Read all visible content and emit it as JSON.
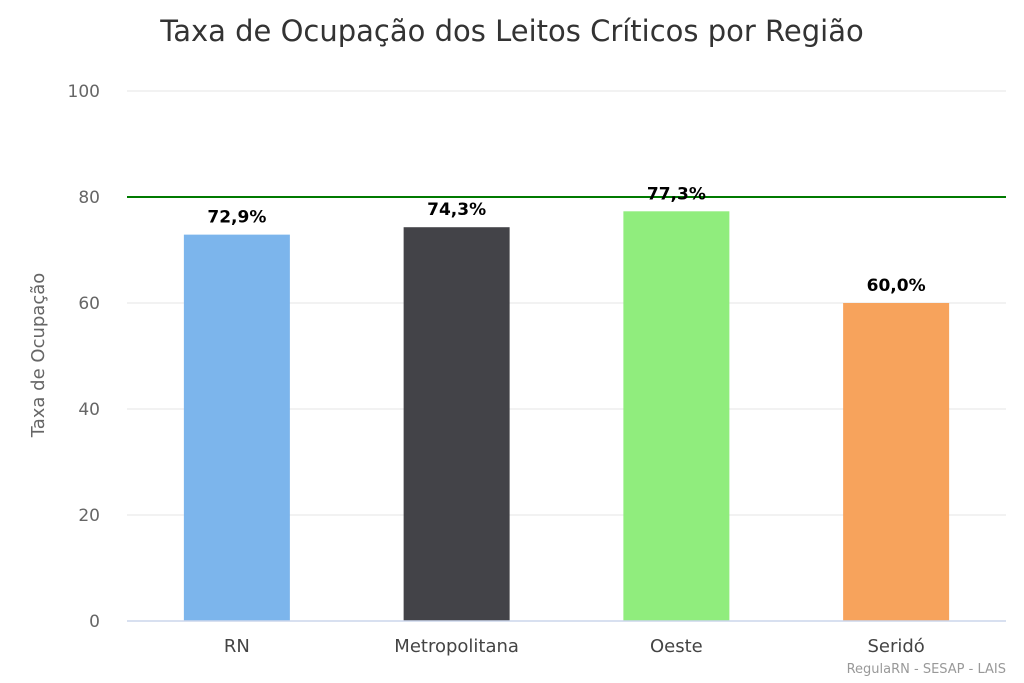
{
  "chart_data": {
    "type": "bar",
    "title": "Taxa de Ocupação dos Leitos Críticos por Região",
    "xlabel": "",
    "ylabel": "Taxa de Ocupação",
    "ylim": [
      0,
      100
    ],
    "yticks": [
      0,
      20,
      40,
      60,
      80,
      100
    ],
    "grid": true,
    "categories": [
      "RN",
      "Metropolitana",
      "Oeste",
      "Seridó"
    ],
    "values": [
      72.9,
      74.3,
      77.3,
      60.0
    ],
    "data_labels": [
      "72,9%",
      "74,3%",
      "77,3%",
      "60,0%"
    ],
    "colors": [
      "#7cb5ec",
      "#434348",
      "#90ed7d",
      "#f7a35c"
    ],
    "reference_line": {
      "value": 80,
      "color": "#007a00"
    },
    "credits": "RegulaRN - SESAP - LAIS"
  }
}
